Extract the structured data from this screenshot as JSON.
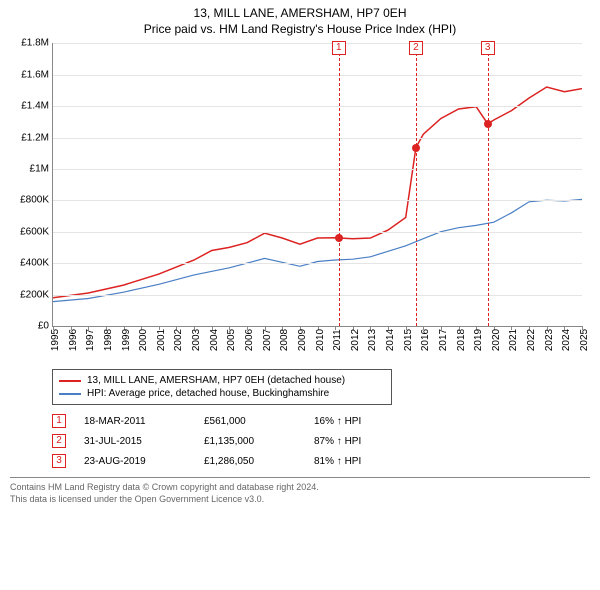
{
  "title": "13, MILL LANE, AMERSHAM, HP7 0EH",
  "subtitle": "Price paid vs. HM Land Registry's House Price Index (HPI)",
  "chart": {
    "type": "line",
    "background_color": "#ffffff",
    "grid_color": "#e5e5e5",
    "axis_color": "#888888",
    "label_fontsize": 10,
    "x": {
      "min": 1995,
      "max": 2025,
      "ticks": [
        1995,
        1996,
        1997,
        1998,
        1999,
        2000,
        2001,
        2002,
        2003,
        2004,
        2005,
        2006,
        2007,
        2008,
        2009,
        2010,
        2011,
        2012,
        2013,
        2014,
        2015,
        2016,
        2017,
        2018,
        2019,
        2020,
        2021,
        2022,
        2023,
        2024,
        2025
      ],
      "rotation": -90
    },
    "y": {
      "min": 0,
      "max": 1800000,
      "tick_step": 200000,
      "prefix": "£",
      "suffix_rules": "M_or_K"
    },
    "series": [
      {
        "key": "property",
        "label": "13, MILL LANE, AMERSHAM, HP7 0EH (detached house)",
        "color": "#dd2222",
        "line_width": 1.5,
        "points": [
          [
            1995,
            180000
          ],
          [
            1997,
            210000
          ],
          [
            1999,
            260000
          ],
          [
            2001,
            330000
          ],
          [
            2003,
            420000
          ],
          [
            2004,
            480000
          ],
          [
            2005,
            500000
          ],
          [
            2006,
            530000
          ],
          [
            2007,
            590000
          ],
          [
            2008,
            560000
          ],
          [
            2009,
            520000
          ],
          [
            2010,
            560000
          ],
          [
            2011,
            561000
          ],
          [
            2012,
            555000
          ],
          [
            2013,
            560000
          ],
          [
            2014,
            610000
          ],
          [
            2015,
            690000
          ],
          [
            2015.58,
            1135000
          ],
          [
            2016,
            1220000
          ],
          [
            2017,
            1320000
          ],
          [
            2018,
            1380000
          ],
          [
            2019,
            1395000
          ],
          [
            2019.65,
            1286050
          ],
          [
            2020,
            1310000
          ],
          [
            2021,
            1370000
          ],
          [
            2022,
            1450000
          ],
          [
            2023,
            1520000
          ],
          [
            2024,
            1490000
          ],
          [
            2025,
            1510000
          ]
        ],
        "markers": [
          {
            "x": 2011.21,
            "y": 561000
          },
          {
            "x": 2015.58,
            "y": 1135000
          },
          {
            "x": 2019.65,
            "y": 1286050
          }
        ]
      },
      {
        "key": "hpi",
        "label": "HPI: Average price, detached house, Buckinghamshire",
        "color": "#4a7fc5",
        "line_width": 1.2,
        "points": [
          [
            1995,
            155000
          ],
          [
            1997,
            175000
          ],
          [
            1999,
            215000
          ],
          [
            2001,
            265000
          ],
          [
            2003,
            325000
          ],
          [
            2005,
            370000
          ],
          [
            2007,
            430000
          ],
          [
            2008,
            405000
          ],
          [
            2009,
            380000
          ],
          [
            2010,
            410000
          ],
          [
            2011,
            420000
          ],
          [
            2012,
            425000
          ],
          [
            2013,
            440000
          ],
          [
            2014,
            475000
          ],
          [
            2015,
            510000
          ],
          [
            2016,
            555000
          ],
          [
            2017,
            600000
          ],
          [
            2018,
            625000
          ],
          [
            2019,
            640000
          ],
          [
            2020,
            660000
          ],
          [
            2021,
            720000
          ],
          [
            2022,
            790000
          ],
          [
            2023,
            800000
          ],
          [
            2024,
            795000
          ],
          [
            2025,
            805000
          ]
        ]
      }
    ],
    "events": [
      {
        "n": "1",
        "x": 2011.21,
        "color": "#dd2222"
      },
      {
        "n": "2",
        "x": 2015.58,
        "color": "#dd2222"
      },
      {
        "n": "3",
        "x": 2019.65,
        "color": "#dd2222"
      }
    ]
  },
  "legend": {
    "items": [
      {
        "color": "#dd2222",
        "label_path": "chart.series.0.label"
      },
      {
        "color": "#4a7fc5",
        "label_path": "chart.series.1.label"
      }
    ]
  },
  "sales": [
    {
      "n": "1",
      "date": "18-MAR-2011",
      "price": "£561,000",
      "delta": "16% ↑ HPI",
      "color": "#dd2222"
    },
    {
      "n": "2",
      "date": "31-JUL-2015",
      "price": "£1,135,000",
      "delta": "87% ↑ HPI",
      "color": "#dd2222"
    },
    {
      "n": "3",
      "date": "23-AUG-2019",
      "price": "£1,286,050",
      "delta": "81% ↑ HPI",
      "color": "#dd2222"
    }
  ],
  "footer": {
    "line1": "Contains HM Land Registry data © Crown copyright and database right 2024.",
    "line2": "This data is licensed under the Open Government Licence v3.0."
  }
}
